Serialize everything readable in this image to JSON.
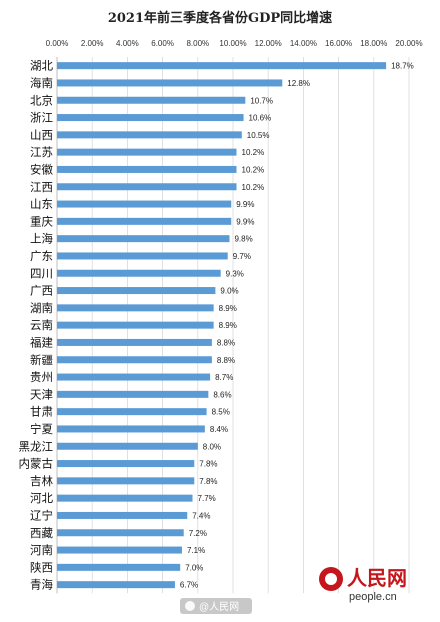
{
  "chart_data": {
    "type": "bar",
    "orientation": "horizontal",
    "title": "2021年前三季度各省份GDP同比增速",
    "xlim": [
      0,
      20
    ],
    "xticks": [
      "0.00%",
      "2.00%",
      "4.00%",
      "6.00%",
      "8.00%",
      "10.00%",
      "12.00%",
      "14.00%",
      "16.00%",
      "18.00%",
      "20.00%"
    ],
    "x_axis_position": "top",
    "grid": true,
    "bar_color": "#5b9bd5",
    "categories": [
      "湖北",
      "海南",
      "北京",
      "浙江",
      "山西",
      "江苏",
      "安徽",
      "江西",
      "山东",
      "重庆",
      "上海",
      "广东",
      "四川",
      "广西",
      "湖南",
      "云南",
      "福建",
      "新疆",
      "贵州",
      "天津",
      "甘肃",
      "宁夏",
      "黑龙江",
      "内蒙古",
      "吉林",
      "河北",
      "辽宁",
      "西藏",
      "河南",
      "陕西",
      "青海"
    ],
    "values": [
      18.7,
      12.8,
      10.7,
      10.6,
      10.5,
      10.2,
      10.2,
      10.2,
      9.9,
      9.9,
      9.8,
      9.7,
      9.3,
      9.0,
      8.9,
      8.9,
      8.8,
      8.8,
      8.7,
      8.6,
      8.5,
      8.4,
      8.0,
      7.8,
      7.8,
      7.7,
      7.4,
      7.2,
      7.1,
      7.0,
      6.7
    ],
    "data_labels": [
      "18.7%",
      "12.8%",
      "10.7%",
      "10.6%",
      "10.5%",
      "10.2%",
      "10.2%",
      "10.2%",
      "9.9%",
      "9.9%",
      "9.8%",
      "9.7%",
      "9.3%",
      "9.0%",
      "8.9%",
      "8.9%",
      "8.8%",
      "8.8%",
      "8.7%",
      "8.6%",
      "8.5%",
      "8.4%",
      "8.0%",
      "7.8%",
      "7.8%",
      "7.7%",
      "7.4%",
      "7.2%",
      "7.1%",
      "7.0%",
      "6.7%"
    ]
  },
  "branding": {
    "logo_text": "人民网",
    "logo_url": "people.cn",
    "watermark": "@人民网",
    "logo_color": "#c4161c"
  }
}
